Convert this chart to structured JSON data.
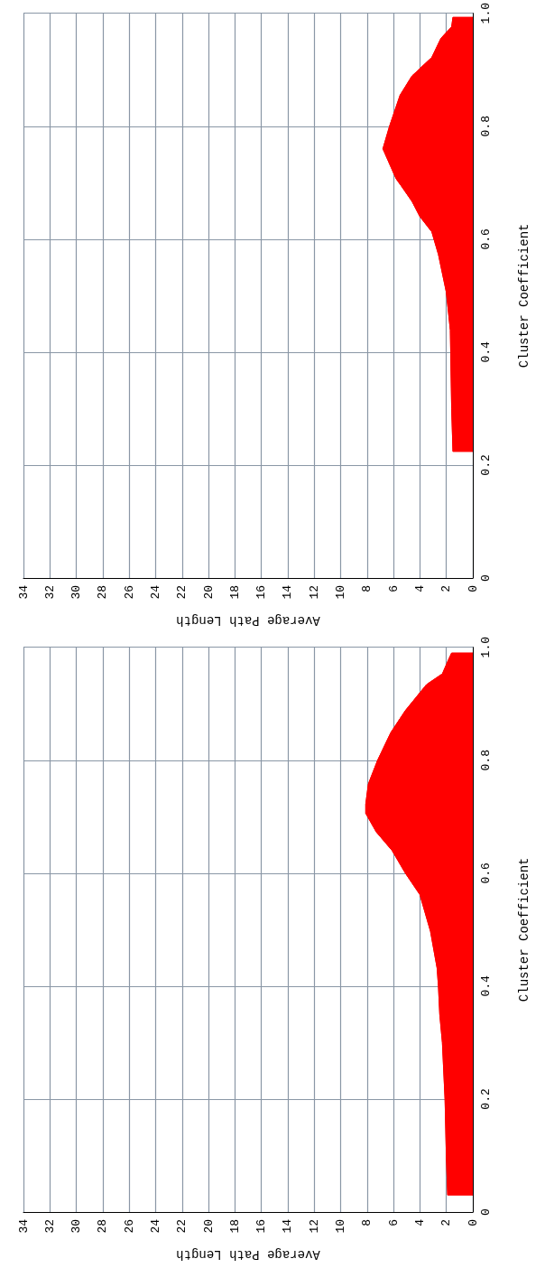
{
  "chart_data": [
    {
      "type": "area",
      "orientation": "horizontal",
      "xlabel": "Average Path Length",
      "ylabel": "Cluster Coefficient",
      "xlim": [
        34,
        0
      ],
      "ylim": [
        0,
        1
      ],
      "yticks": [
        0,
        0.2,
        0.4,
        0.6,
        0.8,
        {
          "value": 1,
          "label": "1.0"
        }
      ],
      "xticks": [
        0,
        2,
        4,
        6,
        8,
        10,
        12,
        14,
        16,
        18,
        20,
        22,
        24,
        26,
        28,
        30,
        32,
        34
      ],
      "grid": true,
      "series": [
        {
          "color": "#ff0000",
          "x": [
            0.224,
            0.3,
            0.439,
            0.506,
            0.573,
            0.613,
            0.64,
            0.667,
            0.694,
            0.707,
            0.76,
            0.8,
            0.855,
            0.889,
            0.922,
            0.956,
            0.976,
            0.993
          ],
          "values": [
            1.5,
            1.6,
            1.7,
            2.0,
            2.6,
            3.1,
            4.0,
            4.6,
            5.4,
            5.8,
            6.8,
            6.3,
            5.5,
            4.6,
            3.1,
            2.4,
            1.6,
            1.5
          ]
        }
      ]
    },
    {
      "type": "area",
      "orientation": "horizontal",
      "xlabel": "Average Path Length",
      "ylabel": "Cluster Coefficient",
      "xlim": [
        34,
        0
      ],
      "ylim": [
        0,
        1
      ],
      "yticks": [
        0,
        0.2,
        0.4,
        0.6,
        0.8,
        {
          "value": 1,
          "label": "1.0"
        }
      ],
      "xticks": [
        0,
        2,
        4,
        6,
        8,
        10,
        12,
        14,
        16,
        18,
        20,
        22,
        24,
        26,
        28,
        30,
        32,
        34
      ],
      "grid": true,
      "series": [
        {
          "color": "#ff0000",
          "x": [
            0.03,
            0.1,
            0.2,
            0.3,
            0.35,
            0.4,
            0.432,
            0.497,
            0.562,
            0.6,
            0.64,
            0.673,
            0.706,
            0.722,
            0.758,
            0.8,
            0.849,
            0.888,
            0.934,
            0.953,
            0.98,
            0.99
          ],
          "values": [
            1.9,
            2.0,
            2.1,
            2.3,
            2.5,
            2.6,
            2.7,
            3.2,
            4.0,
            5.1,
            6.1,
            7.3,
            8.1,
            8.1,
            7.9,
            7.2,
            6.2,
            5.1,
            3.5,
            2.3,
            1.8,
            1.6
          ]
        }
      ]
    }
  ]
}
